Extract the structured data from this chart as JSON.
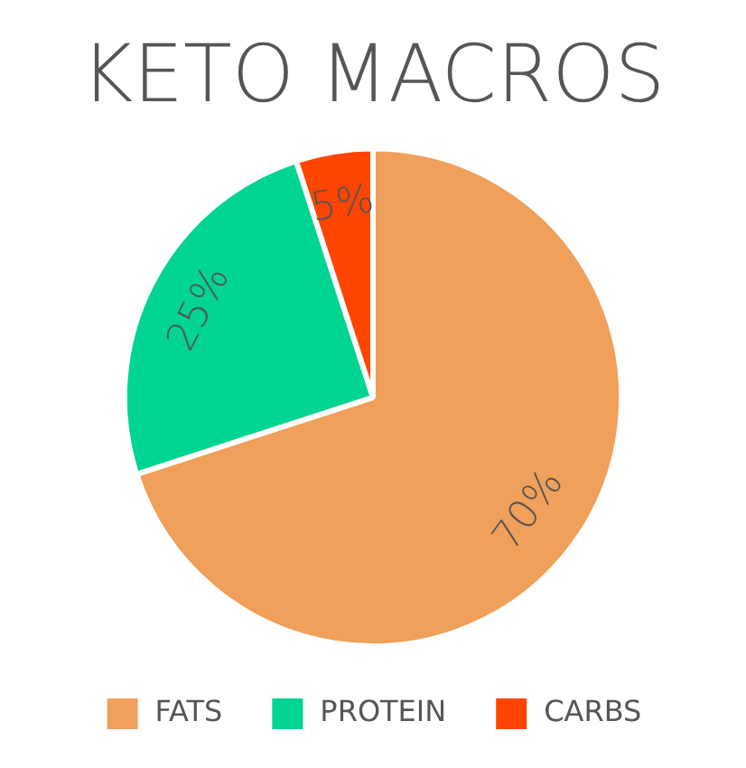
{
  "chart_data": {
    "type": "pie",
    "title": "KETO MACROS",
    "categories": [
      "FATS",
      "PROTEIN",
      "CARBS"
    ],
    "values": [
      70,
      25,
      5
    ],
    "colors": [
      "#f0a05a",
      "#00d492",
      "#ff4500"
    ],
    "value_labels": [
      "70%",
      "25%",
      "5%"
    ],
    "legend": "bottom"
  }
}
